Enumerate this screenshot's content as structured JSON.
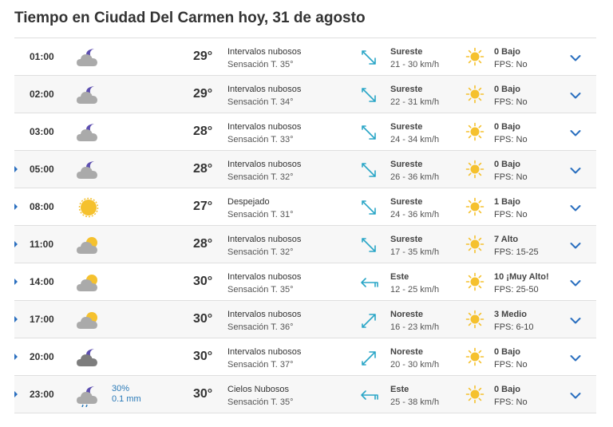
{
  "title": "Tiempo en Ciudad Del Carmen hoy, 31 de agosto",
  "colors": {
    "accent": "#2a6fbf",
    "sun": "#f5c12e",
    "cloud": "#a9a9a9",
    "moon": "#5d4fb0",
    "rain": "#2a7ab8",
    "wind": "#2aa6c7"
  },
  "rows": [
    {
      "hour": "01:00",
      "icon": "cloud-moon-icon",
      "marker": false,
      "rain_pct": "",
      "rain_mm": "",
      "temp": "29°",
      "condition": "Intervalos nubosos",
      "feels": "Sensación T. 35°",
      "wind_icon": "wind-southeast-icon",
      "wind_dir": "Sureste",
      "wind_speed": "21 - 30 km/h",
      "uv": "0 Bajo",
      "fps": "FPS: No"
    },
    {
      "hour": "02:00",
      "icon": "cloud-moon-icon",
      "marker": false,
      "rain_pct": "",
      "rain_mm": "",
      "temp": "29°",
      "condition": "Intervalos nubosos",
      "feels": "Sensación T. 34°",
      "wind_icon": "wind-southeast-icon",
      "wind_dir": "Sureste",
      "wind_speed": "22 - 31 km/h",
      "uv": "0 Bajo",
      "fps": "FPS: No"
    },
    {
      "hour": "03:00",
      "icon": "cloud-moon-icon",
      "marker": false,
      "rain_pct": "",
      "rain_mm": "",
      "temp": "28°",
      "condition": "Intervalos nubosos",
      "feels": "Sensación T. 33°",
      "wind_icon": "wind-southeast-icon",
      "wind_dir": "Sureste",
      "wind_speed": "24 - 34 km/h",
      "uv": "0 Bajo",
      "fps": "FPS: No"
    },
    {
      "hour": "05:00",
      "icon": "cloud-moon-icon",
      "marker": true,
      "rain_pct": "",
      "rain_mm": "",
      "temp": "28°",
      "condition": "Intervalos nubosos",
      "feels": "Sensación T. 32°",
      "wind_icon": "wind-southeast-icon",
      "wind_dir": "Sureste",
      "wind_speed": "26 - 36 km/h",
      "uv": "0 Bajo",
      "fps": "FPS: No"
    },
    {
      "hour": "08:00",
      "icon": "sun-icon",
      "marker": true,
      "rain_pct": "",
      "rain_mm": "",
      "temp": "27°",
      "condition": "Despejado",
      "feels": "Sensación T. 31°",
      "wind_icon": "wind-southeast-icon",
      "wind_dir": "Sureste",
      "wind_speed": "24 - 36 km/h",
      "uv": "1 Bajo",
      "fps": "FPS: No"
    },
    {
      "hour": "11:00",
      "icon": "cloud-sun-icon",
      "marker": true,
      "rain_pct": "",
      "rain_mm": "",
      "temp": "28°",
      "condition": "Intervalos nubosos",
      "feels": "Sensación T. 32°",
      "wind_icon": "wind-southeast-icon",
      "wind_dir": "Sureste",
      "wind_speed": "17 - 35 km/h",
      "uv": "7 Alto",
      "fps": "FPS: 15-25"
    },
    {
      "hour": "14:00",
      "icon": "cloud-sun-icon",
      "marker": true,
      "rain_pct": "",
      "rain_mm": "",
      "temp": "30°",
      "condition": "Intervalos nubosos",
      "feels": "Sensación T. 35°",
      "wind_icon": "wind-east-icon",
      "wind_dir": "Este",
      "wind_speed": "12 - 25 km/h",
      "uv": "10 ¡Muy Alto!",
      "fps": "FPS: 25-50"
    },
    {
      "hour": "17:00",
      "icon": "cloud-sun-icon",
      "marker": true,
      "rain_pct": "",
      "rain_mm": "",
      "temp": "30°",
      "condition": "Intervalos nubosos",
      "feels": "Sensación T. 36°",
      "wind_icon": "wind-northeast-icon",
      "wind_dir": "Noreste",
      "wind_speed": "16 - 23 km/h",
      "uv": "3 Medio",
      "fps": "FPS: 6-10"
    },
    {
      "hour": "20:00",
      "icon": "dark-cloud-moon-icon",
      "marker": true,
      "rain_pct": "",
      "rain_mm": "",
      "temp": "30°",
      "condition": "Intervalos nubosos",
      "feels": "Sensación T. 37°",
      "wind_icon": "wind-northeast-icon",
      "wind_dir": "Noreste",
      "wind_speed": "20 - 30 km/h",
      "uv": "0 Bajo",
      "fps": "FPS: No"
    },
    {
      "hour": "23:00",
      "icon": "cloud-moon-rain-icon",
      "marker": true,
      "rain_pct": "30%",
      "rain_mm": "0.1 mm",
      "temp": "30°",
      "condition": "Cielos Nubosos",
      "feels": "Sensación T. 35°",
      "wind_icon": "wind-east-icon",
      "wind_dir": "Este",
      "wind_speed": "25 - 38 km/h",
      "uv": "0 Bajo",
      "fps": "FPS: No"
    }
  ]
}
